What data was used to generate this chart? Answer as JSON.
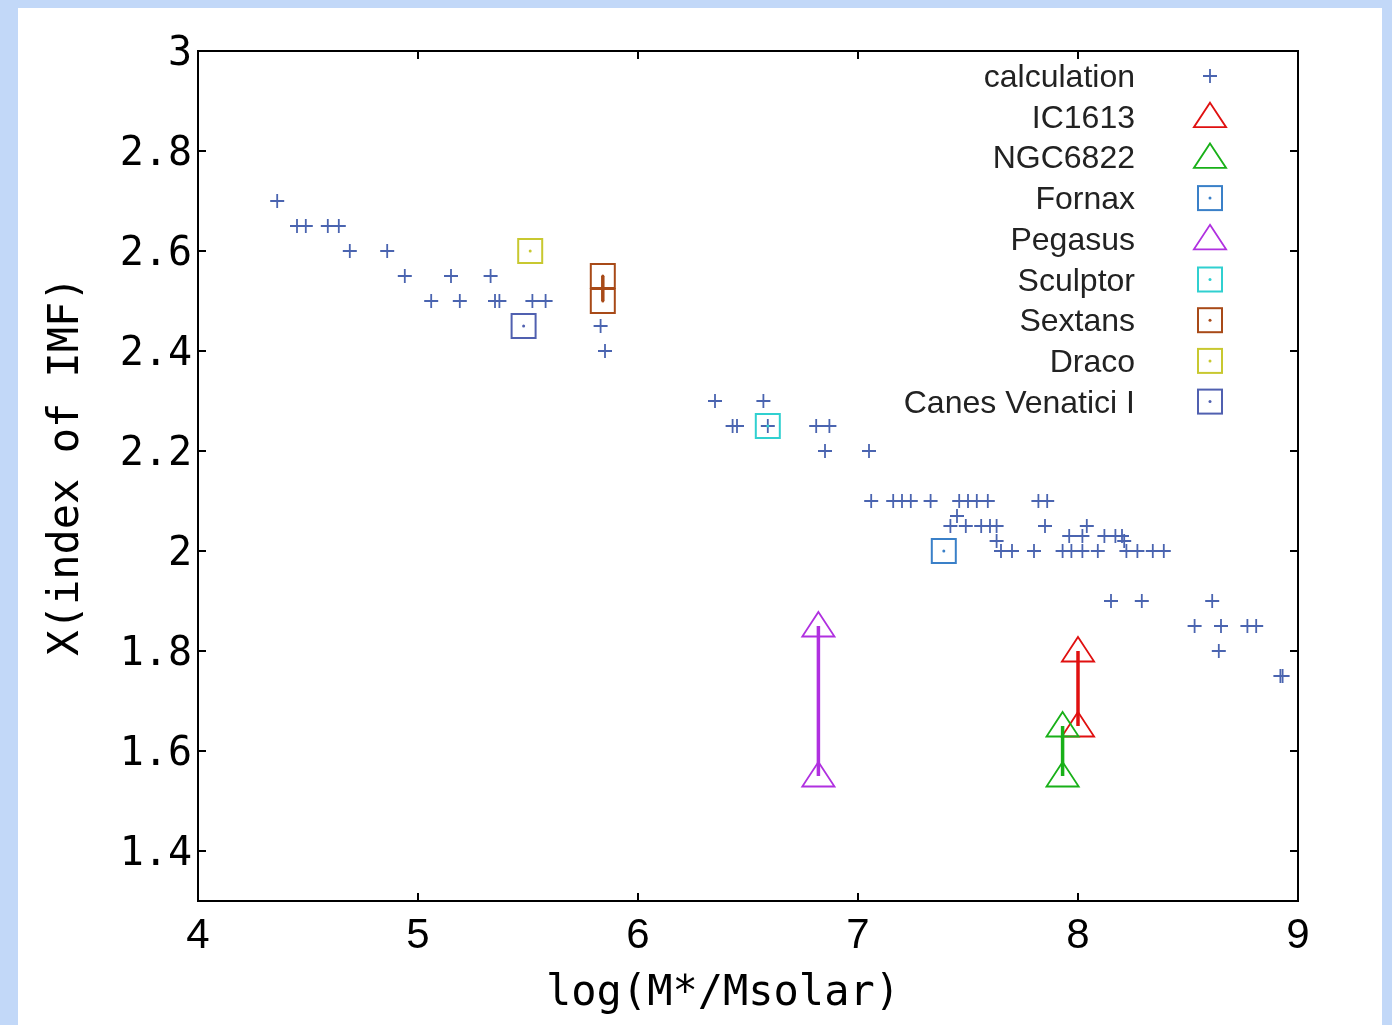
{
  "chart_data": {
    "type": "scatter",
    "xlabel": "log(M*/Msolar)",
    "ylabel": "X(index of IMF)",
    "xlim": [
      4,
      9
    ],
    "xticks": [
      4,
      5,
      6,
      7,
      8,
      9
    ],
    "ylim": [
      1.3,
      3
    ],
    "yticks": [
      1.4,
      1.6,
      1.8,
      2,
      2.2,
      2.4,
      2.6,
      2.8,
      3
    ],
    "legend": "top right",
    "grid": false,
    "series": [
      {
        "name": "calculation",
        "marker": "cross",
        "color": "#4a64b0",
        "x": [
          4.36,
          4.45,
          4.49,
          4.59,
          4.64,
          4.69,
          4.86,
          4.94,
          5.15,
          5.33,
          5.06,
          5.19,
          5.35,
          5.37,
          5.52,
          5.58,
          5.83,
          5.85,
          6.35,
          6.57,
          6.43,
          6.45,
          6.59,
          6.81,
          6.87,
          6.85,
          7.05,
          7.06,
          7.16,
          7.2,
          7.24,
          7.33,
          7.46,
          7.5,
          7.54,
          7.59,
          7.82,
          7.86,
          7.42,
          7.49,
          7.56,
          7.6,
          7.63,
          7.85,
          8.04,
          7.45,
          7.96,
          8.02,
          8.12,
          8.17,
          8.2,
          7.63,
          8.21,
          7.65,
          7.7,
          7.8,
          7.93,
          7.97,
          8.02,
          8.09,
          8.22,
          8.27,
          8.34,
          8.39,
          8.15,
          8.29,
          8.61,
          8.53,
          8.65,
          8.77,
          8.81,
          8.64,
          8.92,
          8.93
        ],
        "values": [
          2.7,
          2.65,
          2.65,
          2.65,
          2.65,
          2.6,
          2.6,
          2.55,
          2.55,
          2.55,
          2.5,
          2.5,
          2.5,
          2.5,
          2.5,
          2.5,
          2.45,
          2.4,
          2.3,
          2.3,
          2.25,
          2.25,
          2.25,
          2.25,
          2.25,
          2.2,
          2.2,
          2.1,
          2.1,
          2.1,
          2.1,
          2.1,
          2.1,
          2.1,
          2.1,
          2.1,
          2.1,
          2.1,
          2.05,
          2.05,
          2.05,
          2.05,
          2.05,
          2.05,
          2.05,
          2.07,
          2.03,
          2.03,
          2.03,
          2.03,
          2.03,
          2.02,
          2.02,
          2,
          2,
          2,
          2,
          2,
          2,
          2,
          2,
          2,
          2,
          2,
          1.9,
          1.9,
          1.9,
          1.85,
          1.85,
          1.85,
          1.85,
          1.8,
          1.75,
          1.75
        ]
      },
      {
        "name": "IC1613",
        "type": "line",
        "marker": "triangle",
        "color": "#e01010",
        "x": [
          8.0,
          8.0
        ],
        "values": [
          1.65,
          1.8
        ]
      },
      {
        "name": "NGC6822",
        "type": "line",
        "marker": "triangle",
        "color": "#18b018",
        "x": [
          7.93,
          7.93
        ],
        "values": [
          1.55,
          1.65
        ]
      },
      {
        "name": "Fornax",
        "marker": "square",
        "color": "#3a80c8",
        "x": [
          7.39
        ],
        "values": [
          2.0
        ]
      },
      {
        "name": "Pegasus",
        "type": "line",
        "marker": "triangle",
        "color": "#b030e0",
        "x": [
          6.82,
          6.82
        ],
        "values": [
          1.55,
          1.85
        ]
      },
      {
        "name": "Sculptor",
        "marker": "square",
        "color": "#30d0d0",
        "x": [
          6.59
        ],
        "values": [
          2.25
        ]
      },
      {
        "name": "Sextans",
        "type": "line",
        "marker": "square",
        "color": "#a84a18",
        "x": [
          5.84,
          5.84
        ],
        "values": [
          2.5,
          2.55
        ]
      },
      {
        "name": "Draco",
        "marker": "square",
        "color": "#c8c830",
        "x": [
          5.51
        ],
        "values": [
          2.6
        ]
      },
      {
        "name": "Canes Venatici I",
        "marker": "square",
        "color": "#5060b0",
        "x": [
          5.48
        ],
        "values": [
          2.45
        ]
      }
    ]
  }
}
